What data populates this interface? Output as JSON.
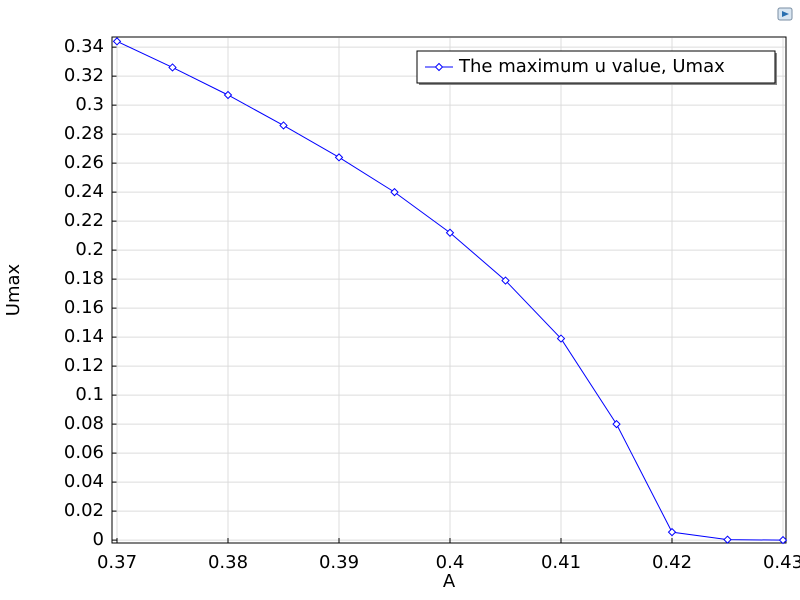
{
  "chart_data": {
    "type": "line",
    "xlabel": "A",
    "ylabel": "Umax",
    "x": [
      0.37,
      0.375,
      0.38,
      0.385,
      0.39,
      0.395,
      0.4,
      0.405,
      0.41,
      0.415,
      0.42,
      0.425,
      0.43
    ],
    "series": [
      {
        "name": "The maximum u value, Umax",
        "color": "#0000ff",
        "values": [
          0.344,
          0.326,
          0.307,
          0.286,
          0.264,
          0.24,
          0.212,
          0.179,
          0.139,
          0.08,
          0.0055,
          0.0003,
          0
        ]
      }
    ],
    "xlim": [
      0.37,
      0.43
    ],
    "ylim": [
      -0.002,
      0.347
    ],
    "xticks": [
      0.37,
      0.38,
      0.39,
      0.4,
      0.41,
      0.42,
      0.43
    ],
    "yticks": [
      0,
      0.02,
      0.04,
      0.06,
      0.08,
      0.1,
      0.12,
      0.14,
      0.16,
      0.18,
      0.2,
      0.22,
      0.24,
      0.26,
      0.28,
      0.3,
      0.32,
      0.34
    ],
    "grid": true,
    "legend": "upper right"
  }
}
